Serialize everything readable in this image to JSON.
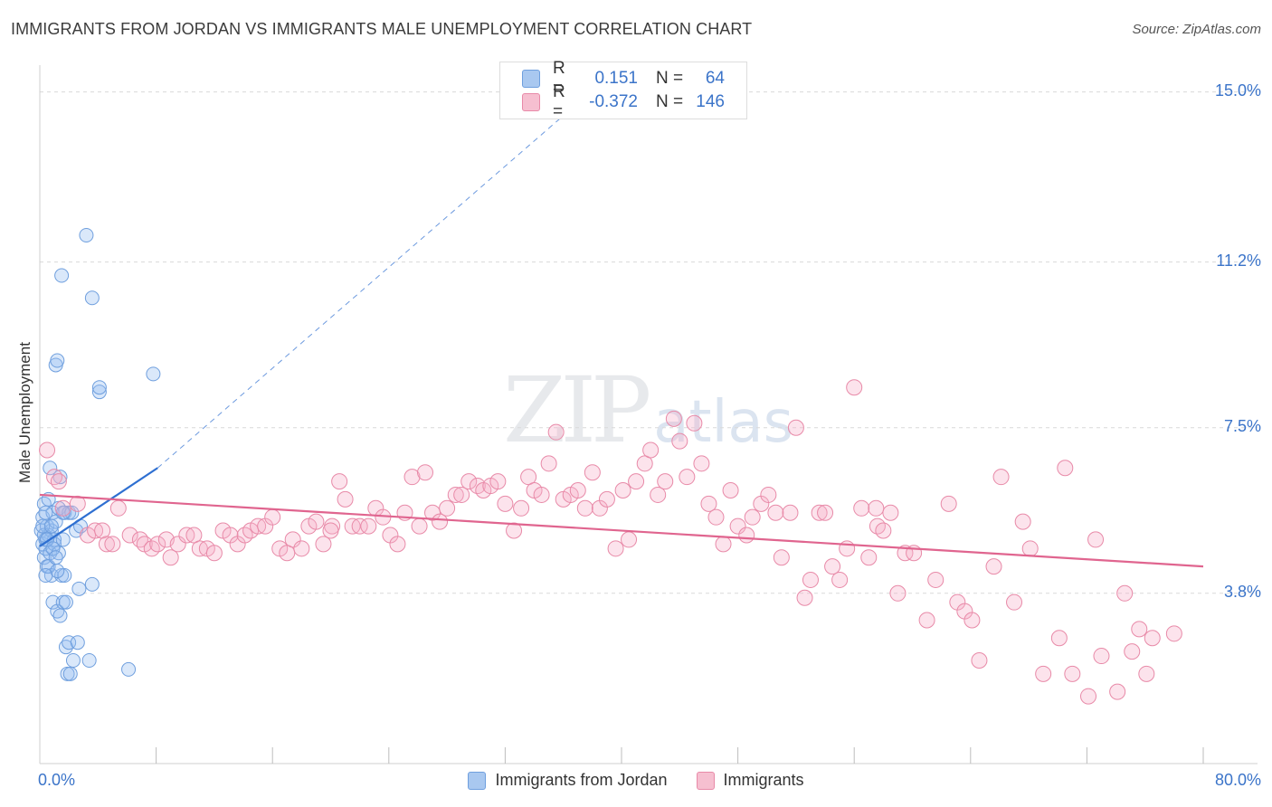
{
  "title": "IMMIGRANTS FROM JORDAN VS IMMIGRANTS MALE UNEMPLOYMENT CORRELATION CHART",
  "source": "Source: ZipAtlas.com",
  "watermark": {
    "zip": "ZIP",
    "atlas": "atlas"
  },
  "legend": {
    "rows": [
      {
        "r_label": "R =",
        "r_value": "0.151",
        "n_label": "N =",
        "n_value": "64",
        "color": "#a9c8f0",
        "border": "#6f9fde"
      },
      {
        "r_label": "R =",
        "r_value": "-0.372",
        "n_label": "N =",
        "n_value": "146",
        "color": "#f6bfd0",
        "border": "#e88aa8"
      }
    ]
  },
  "bottom_legend": [
    {
      "label": "Immigrants from Jordan",
      "color": "#a9c8f0",
      "border": "#6f9fde"
    },
    {
      "label": "Immigrants",
      "color": "#f6bfd0",
      "border": "#e88aa8"
    }
  ],
  "colors": {
    "blue_fill": "rgba(150,190,240,0.35)",
    "blue_stroke": "#6f9fde",
    "blue_line": "#2e6fd1",
    "pink_fill": "rgba(246,175,200,0.35)",
    "pink_stroke": "#e88aa8",
    "pink_line": "#e0658f",
    "axis_text": "#3b74c9",
    "grid": "#d9d9d9"
  },
  "chart_data": {
    "type": "scatter",
    "title": "IMMIGRANTS FROM JORDAN VS IMMIGRANTS MALE UNEMPLOYMENT CORRELATION CHART",
    "xlabel": "",
    "ylabel": "Male Unemployment",
    "xlim": [
      0,
      80
    ],
    "ylim": [
      0.4,
      15.6
    ],
    "x_tick_labels": [
      {
        "value": 0,
        "label": "0.0%"
      },
      {
        "value": 80,
        "label": "80.0%"
      }
    ],
    "y_tick_labels": [
      {
        "value": 3.8,
        "label": "3.8%"
      },
      {
        "value": 7.5,
        "label": "7.5%"
      },
      {
        "value": 11.2,
        "label": "11.2%"
      },
      {
        "value": 15.0,
        "label": "15.0%"
      }
    ],
    "x_minor_ticks": [
      8,
      16,
      24,
      32,
      40,
      48,
      56,
      64,
      72,
      80
    ],
    "series": [
      {
        "name": "Immigrants from Jordan",
        "R": 0.151,
        "N": 64,
        "trend": {
          "x0": 0.0,
          "y0": 4.85,
          "x1": 8.1,
          "y1": 6.6,
          "dashed_to_x": 40,
          "dashed_to_y": 15.6
        },
        "points": [
          [
            0.1,
            5.2
          ],
          [
            0.2,
            4.9
          ],
          [
            0.2,
            5.5
          ],
          [
            0.3,
            4.6
          ],
          [
            0.3,
            5.8
          ],
          [
            0.4,
            5.0
          ],
          [
            0.4,
            4.8
          ],
          [
            0.5,
            5.3
          ],
          [
            0.5,
            4.4
          ],
          [
            0.6,
            5.1
          ],
          [
            0.6,
            5.9
          ],
          [
            0.7,
            4.7
          ],
          [
            0.7,
            6.6
          ],
          [
            0.8,
            5.2
          ],
          [
            0.8,
            4.2
          ],
          [
            0.9,
            5.6
          ],
          [
            0.9,
            3.6
          ],
          [
            1.0,
            5.0
          ],
          [
            1.0,
            4.9
          ],
          [
            1.1,
            5.4
          ],
          [
            1.1,
            8.9
          ],
          [
            1.2,
            9.0
          ],
          [
            1.2,
            3.4
          ],
          [
            1.3,
            4.7
          ],
          [
            1.3,
            5.7
          ],
          [
            1.4,
            6.4
          ],
          [
            1.4,
            3.3
          ],
          [
            1.5,
            10.9
          ],
          [
            1.5,
            4.2
          ],
          [
            1.6,
            5.0
          ],
          [
            1.6,
            3.6
          ],
          [
            1.7,
            4.2
          ],
          [
            1.7,
            5.6
          ],
          [
            1.8,
            2.6
          ],
          [
            1.8,
            3.6
          ],
          [
            1.9,
            2.0
          ],
          [
            2.0,
            5.6
          ],
          [
            2.0,
            2.7
          ],
          [
            2.1,
            2.0
          ],
          [
            2.2,
            5.6
          ],
          [
            2.3,
            2.3
          ],
          [
            2.5,
            5.2
          ],
          [
            2.6,
            2.7
          ],
          [
            2.7,
            3.9
          ],
          [
            2.8,
            5.3
          ],
          [
            3.2,
            11.8
          ],
          [
            3.4,
            2.3
          ],
          [
            3.6,
            10.4
          ],
          [
            3.6,
            4.0
          ],
          [
            4.1,
            8.3
          ],
          [
            4.1,
            8.4
          ],
          [
            6.1,
            2.1
          ],
          [
            7.8,
            8.7
          ],
          [
            0.3,
            5.1
          ],
          [
            0.5,
            5.0
          ],
          [
            0.6,
            4.4
          ],
          [
            0.9,
            4.8
          ],
          [
            1.1,
            4.6
          ],
          [
            1.6,
            5.6
          ],
          [
            0.2,
            5.3
          ],
          [
            0.4,
            5.6
          ],
          [
            0.8,
            5.3
          ],
          [
            1.2,
            4.3
          ],
          [
            0.4,
            4.2
          ]
        ]
      },
      {
        "name": "Immigrants",
        "R": -0.372,
        "N": 146,
        "trend": {
          "x0": 0.0,
          "y0": 6.0,
          "x1": 80.0,
          "y1": 4.4
        },
        "points": [
          [
            0.5,
            7.0
          ],
          [
            1.0,
            6.4
          ],
          [
            1.3,
            6.3
          ],
          [
            1.6,
            5.7
          ],
          [
            2.6,
            5.8
          ],
          [
            3.3,
            5.1
          ],
          [
            3.8,
            5.2
          ],
          [
            4.3,
            5.2
          ],
          [
            4.6,
            4.9
          ],
          [
            5.0,
            4.9
          ],
          [
            5.4,
            5.7
          ],
          [
            6.2,
            5.1
          ],
          [
            6.9,
            5.0
          ],
          [
            7.2,
            4.9
          ],
          [
            7.7,
            4.8
          ],
          [
            8.1,
            4.9
          ],
          [
            8.7,
            5.0
          ],
          [
            9.0,
            4.6
          ],
          [
            9.5,
            4.9
          ],
          [
            10.1,
            5.1
          ],
          [
            10.6,
            5.1
          ],
          [
            11.0,
            4.8
          ],
          [
            11.5,
            4.8
          ],
          [
            12.0,
            4.7
          ],
          [
            12.6,
            5.2
          ],
          [
            13.1,
            5.1
          ],
          [
            13.6,
            4.9
          ],
          [
            14.1,
            5.1
          ],
          [
            14.5,
            5.2
          ],
          [
            15.0,
            5.3
          ],
          [
            15.5,
            5.3
          ],
          [
            16.0,
            5.5
          ],
          [
            16.5,
            4.8
          ],
          [
            17.0,
            4.7
          ],
          [
            17.4,
            5.0
          ],
          [
            18.0,
            4.8
          ],
          [
            18.5,
            5.3
          ],
          [
            19.0,
            5.4
          ],
          [
            19.5,
            4.9
          ],
          [
            20.1,
            5.3
          ],
          [
            20.6,
            6.3
          ],
          [
            21.0,
            5.9
          ],
          [
            21.5,
            5.3
          ],
          [
            22.0,
            5.3
          ],
          [
            22.6,
            5.3
          ],
          [
            23.1,
            5.7
          ],
          [
            23.6,
            5.5
          ],
          [
            24.1,
            5.1
          ],
          [
            24.6,
            4.9
          ],
          [
            25.1,
            5.6
          ],
          [
            25.6,
            6.4
          ],
          [
            26.1,
            5.3
          ],
          [
            26.5,
            6.5
          ],
          [
            27.0,
            5.6
          ],
          [
            27.5,
            5.4
          ],
          [
            28.0,
            5.7
          ],
          [
            28.6,
            6.0
          ],
          [
            29.0,
            6.0
          ],
          [
            29.5,
            6.3
          ],
          [
            30.1,
            6.2
          ],
          [
            30.5,
            6.1
          ],
          [
            31.0,
            6.2
          ],
          [
            31.5,
            6.3
          ],
          [
            32.0,
            5.8
          ],
          [
            32.6,
            5.2
          ],
          [
            33.1,
            5.7
          ],
          [
            33.6,
            6.4
          ],
          [
            34.0,
            6.1
          ],
          [
            34.5,
            6.0
          ],
          [
            35.0,
            6.7
          ],
          [
            35.5,
            7.4
          ],
          [
            36.0,
            5.9
          ],
          [
            36.5,
            6.0
          ],
          [
            37.0,
            6.1
          ],
          [
            37.5,
            5.7
          ],
          [
            38.0,
            6.5
          ],
          [
            38.5,
            5.7
          ],
          [
            39.0,
            5.9
          ],
          [
            39.6,
            4.8
          ],
          [
            40.1,
            6.1
          ],
          [
            40.5,
            5.0
          ],
          [
            41.0,
            6.3
          ],
          [
            41.6,
            6.7
          ],
          [
            42.0,
            7.0
          ],
          [
            42.5,
            6.0
          ],
          [
            43.0,
            6.3
          ],
          [
            43.6,
            7.7
          ],
          [
            44.0,
            7.2
          ],
          [
            44.5,
            6.4
          ],
          [
            45.0,
            7.6
          ],
          [
            45.5,
            6.7
          ],
          [
            46.0,
            5.8
          ],
          [
            46.5,
            5.5
          ],
          [
            47.0,
            4.9
          ],
          [
            47.5,
            6.1
          ],
          [
            48.0,
            5.3
          ],
          [
            48.6,
            5.1
          ],
          [
            49.0,
            5.5
          ],
          [
            49.6,
            5.8
          ],
          [
            50.1,
            6.0
          ],
          [
            50.6,
            5.6
          ],
          [
            51.0,
            4.6
          ],
          [
            51.6,
            5.6
          ],
          [
            52.0,
            7.5
          ],
          [
            52.6,
            3.7
          ],
          [
            53.0,
            4.1
          ],
          [
            53.6,
            5.6
          ],
          [
            54.0,
            5.6
          ],
          [
            54.5,
            4.4
          ],
          [
            55.0,
            4.1
          ],
          [
            55.5,
            4.8
          ],
          [
            56.0,
            8.4
          ],
          [
            56.5,
            5.7
          ],
          [
            57.0,
            4.6
          ],
          [
            57.6,
            5.3
          ],
          [
            58.0,
            5.2
          ],
          [
            58.5,
            5.6
          ],
          [
            59.0,
            3.8
          ],
          [
            59.5,
            4.7
          ],
          [
            60.1,
            4.7
          ],
          [
            61.0,
            3.2
          ],
          [
            61.6,
            4.1
          ],
          [
            62.5,
            5.8
          ],
          [
            63.1,
            3.6
          ],
          [
            63.6,
            3.4
          ],
          [
            64.1,
            3.2
          ],
          [
            64.6,
            2.3
          ],
          [
            65.6,
            4.4
          ],
          [
            66.1,
            6.4
          ],
          [
            67.0,
            3.6
          ],
          [
            67.6,
            5.4
          ],
          [
            68.1,
            4.8
          ],
          [
            69.0,
            2.0
          ],
          [
            70.1,
            2.8
          ],
          [
            70.5,
            6.6
          ],
          [
            71.0,
            2.0
          ],
          [
            72.1,
            1.5
          ],
          [
            72.6,
            5.0
          ],
          [
            73.0,
            2.4
          ],
          [
            74.1,
            1.6
          ],
          [
            74.6,
            3.8
          ],
          [
            75.1,
            2.5
          ],
          [
            75.6,
            3.0
          ],
          [
            76.1,
            2.0
          ],
          [
            76.5,
            2.8
          ],
          [
            78.0,
            2.9
          ],
          [
            57.5,
            5.7
          ],
          [
            20.0,
            5.2
          ]
        ]
      }
    ]
  }
}
